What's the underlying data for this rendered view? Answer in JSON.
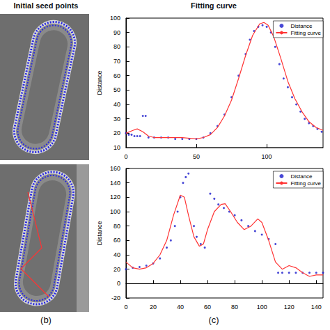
{
  "headers": {
    "left": "Initial seed points",
    "right": "Fitting curve"
  },
  "panel_labels": {
    "left": "(b)",
    "right": "(c)"
  },
  "chart_data": [
    {
      "type": "line",
      "ylabel": "Distance",
      "legend": "top-right",
      "grid": false,
      "xlim": [
        0,
        140
      ],
      "xticks": [
        0,
        50,
        100
      ],
      "ylim": [
        10,
        100
      ],
      "yticks": [
        10,
        20,
        30,
        40,
        50,
        60,
        70,
        80,
        90,
        100
      ],
      "series": [
        {
          "name": "Distance",
          "type": "scatter",
          "marker": "dot",
          "color": "#1a1acc",
          "x": [
            0,
            2,
            4,
            6,
            8,
            10,
            12,
            14,
            16,
            20,
            25,
            30,
            35,
            40,
            45,
            50,
            55,
            60,
            65,
            70,
            75,
            80,
            85,
            88,
            91,
            94,
            97,
            100,
            103,
            106,
            109,
            112,
            115,
            118,
            121,
            124,
            127,
            130,
            133,
            136,
            139
          ],
          "values": [
            20,
            19,
            19,
            18,
            18,
            18,
            32,
            32,
            17,
            17,
            17,
            17,
            16,
            16,
            16,
            16,
            17,
            20,
            25,
            33,
            45,
            60,
            75,
            85,
            91,
            94,
            95,
            94,
            90,
            80,
            68,
            58,
            52,
            45,
            40,
            35,
            30,
            27,
            25,
            23,
            21
          ]
        },
        {
          "name": "Fitting curve",
          "type": "line",
          "line_style": "solid",
          "color": "#ff3333",
          "x": [
            0,
            5,
            8,
            12,
            16,
            20,
            30,
            40,
            50,
            55,
            60,
            65,
            70,
            75,
            80,
            85,
            90,
            95,
            98,
            101,
            105,
            110,
            115,
            120,
            125,
            130,
            135,
            140
          ],
          "values": [
            20,
            22,
            23,
            21,
            18,
            17,
            17,
            17,
            16,
            17,
            19,
            24,
            32,
            43,
            58,
            74,
            88,
            96,
            97,
            95,
            87,
            72,
            56,
            44,
            35,
            28,
            24,
            22
          ]
        }
      ]
    },
    {
      "type": "line",
      "ylabel": "Distance",
      "legend": "top-right",
      "grid": false,
      "xlim": [
        0,
        145
      ],
      "xticks": [
        0,
        20,
        40,
        60,
        80,
        100,
        120,
        140
      ],
      "ylim": [
        -20,
        160
      ],
      "yticks": [
        -20,
        0,
        20,
        40,
        60,
        80,
        100,
        120,
        140,
        160
      ],
      "series": [
        {
          "name": "Distance",
          "type": "scatter",
          "marker": "dot",
          "color": "#1a1acc",
          "x": [
            0,
            5,
            10,
            15,
            20,
            25,
            30,
            33,
            36,
            38,
            40,
            42,
            44,
            46,
            50,
            52,
            55,
            58,
            62,
            65,
            68,
            72,
            76,
            80,
            85,
            90,
            95,
            100,
            105,
            110,
            112,
            115,
            120,
            125,
            130,
            135,
            140,
            145
          ],
          "values": [
            20,
            22,
            23,
            25,
            28,
            35,
            50,
            60,
            80,
            100,
            120,
            140,
            148,
            153,
            80,
            65,
            55,
            50,
            125,
            118,
            110,
            105,
            100,
            95,
            88,
            80,
            73,
            68,
            62,
            55,
            15,
            15,
            15,
            15,
            15,
            15,
            15,
            15
          ]
        },
        {
          "name": "Fitting curve",
          "type": "line",
          "line_style": "solid",
          "color": "#ff3333",
          "x": [
            0,
            5,
            10,
            15,
            20,
            25,
            30,
            35,
            40,
            43,
            46,
            50,
            54,
            57,
            60,
            65,
            70,
            73,
            77,
            82,
            87,
            92,
            97,
            100,
            105,
            110,
            115,
            120,
            125,
            130,
            135,
            140,
            145
          ],
          "values": [
            30,
            22,
            20,
            22,
            28,
            40,
            60,
            95,
            123,
            120,
            95,
            65,
            52,
            55,
            75,
            100,
            110,
            111,
            100,
            85,
            75,
            80,
            90,
            85,
            60,
            30,
            20,
            25,
            22,
            15,
            10,
            12,
            12
          ]
        }
      ]
    }
  ]
}
